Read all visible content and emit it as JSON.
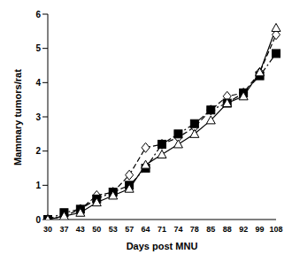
{
  "chart_data": {
    "type": "line",
    "x_label": "Days post MNU",
    "y_label": "Mammary tumors/rat",
    "categories": [
      "30",
      "37",
      "43",
      "50",
      "53",
      "57",
      "64",
      "71",
      "74",
      "78",
      "85",
      "88",
      "92",
      "99",
      "108"
    ],
    "series": [
      {
        "color": "#000000",
        "marker": "open_diamond",
        "line_style": "dashed",
        "values": [
          0,
          0.1,
          0.3,
          0.7,
          0.8,
          1.3,
          2.1,
          2.2,
          2.4,
          2.7,
          3.2,
          3.6,
          3.7,
          4.3,
          5.4
        ]
      },
      {
        "color": "#000000",
        "marker": "filled_square",
        "line_style": "dashdot",
        "values": [
          0,
          0.2,
          0.3,
          0.6,
          0.8,
          1.0,
          1.5,
          2.2,
          2.5,
          2.8,
          3.2,
          3.4,
          3.7,
          4.2,
          4.85
        ]
      },
      {
        "color": "#000000",
        "marker": "open_triangle",
        "line_style": "solid",
        "values": [
          0,
          0.1,
          0.2,
          0.5,
          0.7,
          0.9,
          1.6,
          1.9,
          2.2,
          2.5,
          2.9,
          3.4,
          3.6,
          4.3,
          5.6
        ]
      }
    ],
    "ylim": [
      0,
      6
    ],
    "yticks": [
      0,
      1,
      2,
      3,
      4,
      5,
      6
    ],
    "grid": false
  }
}
